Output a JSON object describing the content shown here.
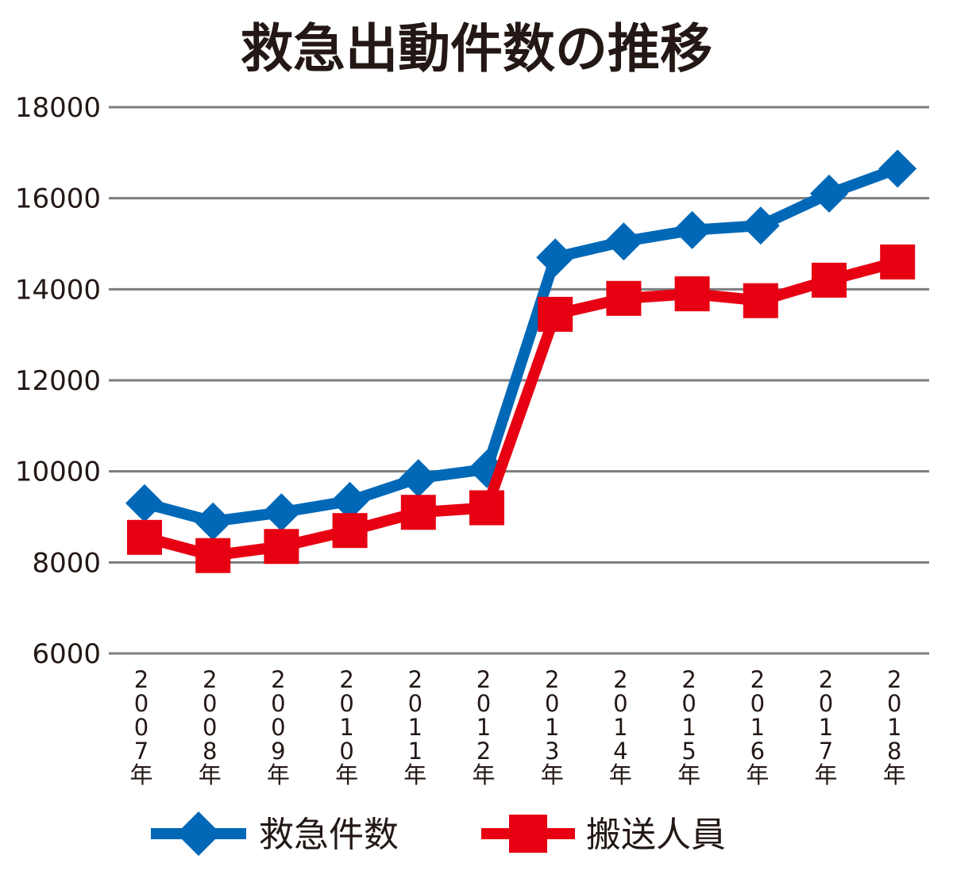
{
  "chart_data": {
    "type": "line",
    "title": "救急出動件数の推移",
    "categories": [
      "2007年",
      "2008年",
      "2009年",
      "2010年",
      "2011年",
      "2012年",
      "2013年",
      "2014年",
      "2015年",
      "2016年",
      "2017年",
      "2018年"
    ],
    "yticks": [
      "6000",
      "8000",
      "10000",
      "12000",
      "14000",
      "16000",
      "18000"
    ],
    "ylim": [
      6000,
      18000
    ],
    "grid": true,
    "legend_position": "bottom",
    "series": [
      {
        "name": "救急件数",
        "color": "#0068b7",
        "marker": "diamond",
        "values": [
          9300,
          8900,
          9100,
          9350,
          9850,
          10050,
          14700,
          15050,
          15300,
          15400,
          16100,
          16650
        ]
      },
      {
        "name": "搬送人員",
        "color": "#e60012",
        "marker": "square",
        "values": [
          8550,
          8150,
          8350,
          8700,
          9100,
          9200,
          13450,
          13800,
          13900,
          13750,
          14200,
          14600
        ]
      }
    ]
  }
}
